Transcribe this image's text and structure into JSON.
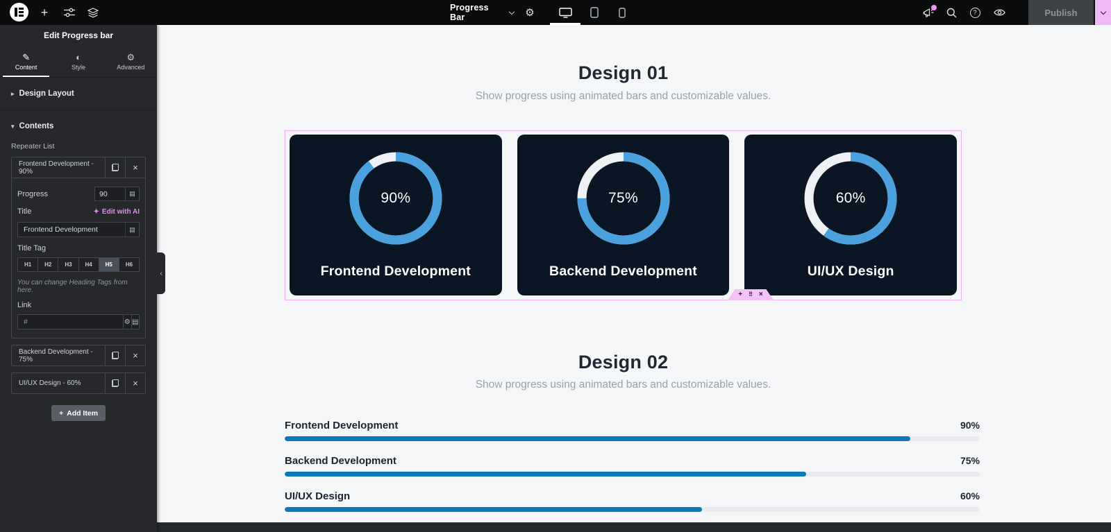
{
  "topbar": {
    "widget_name": "Progress Bar",
    "publish_label": "Publish"
  },
  "icons": {
    "plus": "+",
    "gear": "⚙",
    "pencil": "✎",
    "style_circle": "◐",
    "close": "×",
    "dynamic_tags": "▤",
    "sparkle": "✦",
    "drag_dots": "⠿",
    "arrow_right": "▸",
    "arrow_down": "▾",
    "collapse_left": "‹",
    "help": "?"
  },
  "sidebar": {
    "title": "Edit Progress bar",
    "tabs": [
      {
        "label": "Content"
      },
      {
        "label": "Style"
      },
      {
        "label": "Advanced"
      }
    ],
    "sections": {
      "design_layout": "Design Layout",
      "contents": "Contents"
    },
    "repeater": {
      "label": "Repeater List",
      "items": [
        {
          "header": "Frontend Development - 90%",
          "progress_label": "Progress",
          "progress_value": "90",
          "title_label": "Title",
          "edit_with_ai": "Edit with AI",
          "title_value": "Frontend Development",
          "title_tag_label": "Title Tag",
          "tags": [
            "H1",
            "H2",
            "H3",
            "H4",
            "H5",
            "H6"
          ],
          "active_tag": "H5",
          "note": "You can change Heading Tags from here.",
          "link_label": "Link",
          "link_placeholder": "#"
        },
        {
          "header": "Backend Development - 75%"
        },
        {
          "header": "UI/UX Design - 60%"
        }
      ],
      "add_item_label": "Add Item"
    }
  },
  "canvas": {
    "design01": {
      "title": "Design 01",
      "subtitle": "Show progress using animated bars and customizable values.",
      "cards": [
        {
          "percent": 90,
          "percent_label": "90%",
          "title": "Frontend Development"
        },
        {
          "percent": 75,
          "percent_label": "75%",
          "title": "Backend Development"
        },
        {
          "percent": 60,
          "percent_label": "60%",
          "title": "UI/UX Design"
        }
      ]
    },
    "design02": {
      "title": "Design 02",
      "subtitle": "Show progress using animated bars and customizable values.",
      "bars": [
        {
          "label": "Frontend Development",
          "percent": 90,
          "percent_label": "90%"
        },
        {
          "label": "Backend Development",
          "percent": 75,
          "percent_label": "75%"
        },
        {
          "label": "UI/UX Design",
          "percent": 60,
          "percent_label": "60%"
        }
      ]
    }
  },
  "colors": {
    "ring_blue": "#4aa1de",
    "bar_blue": "#0e79ba",
    "card_bg": "#0a1624",
    "selection_pink": "#eeb2f2",
    "brand_pink": "#f2b8f5"
  }
}
